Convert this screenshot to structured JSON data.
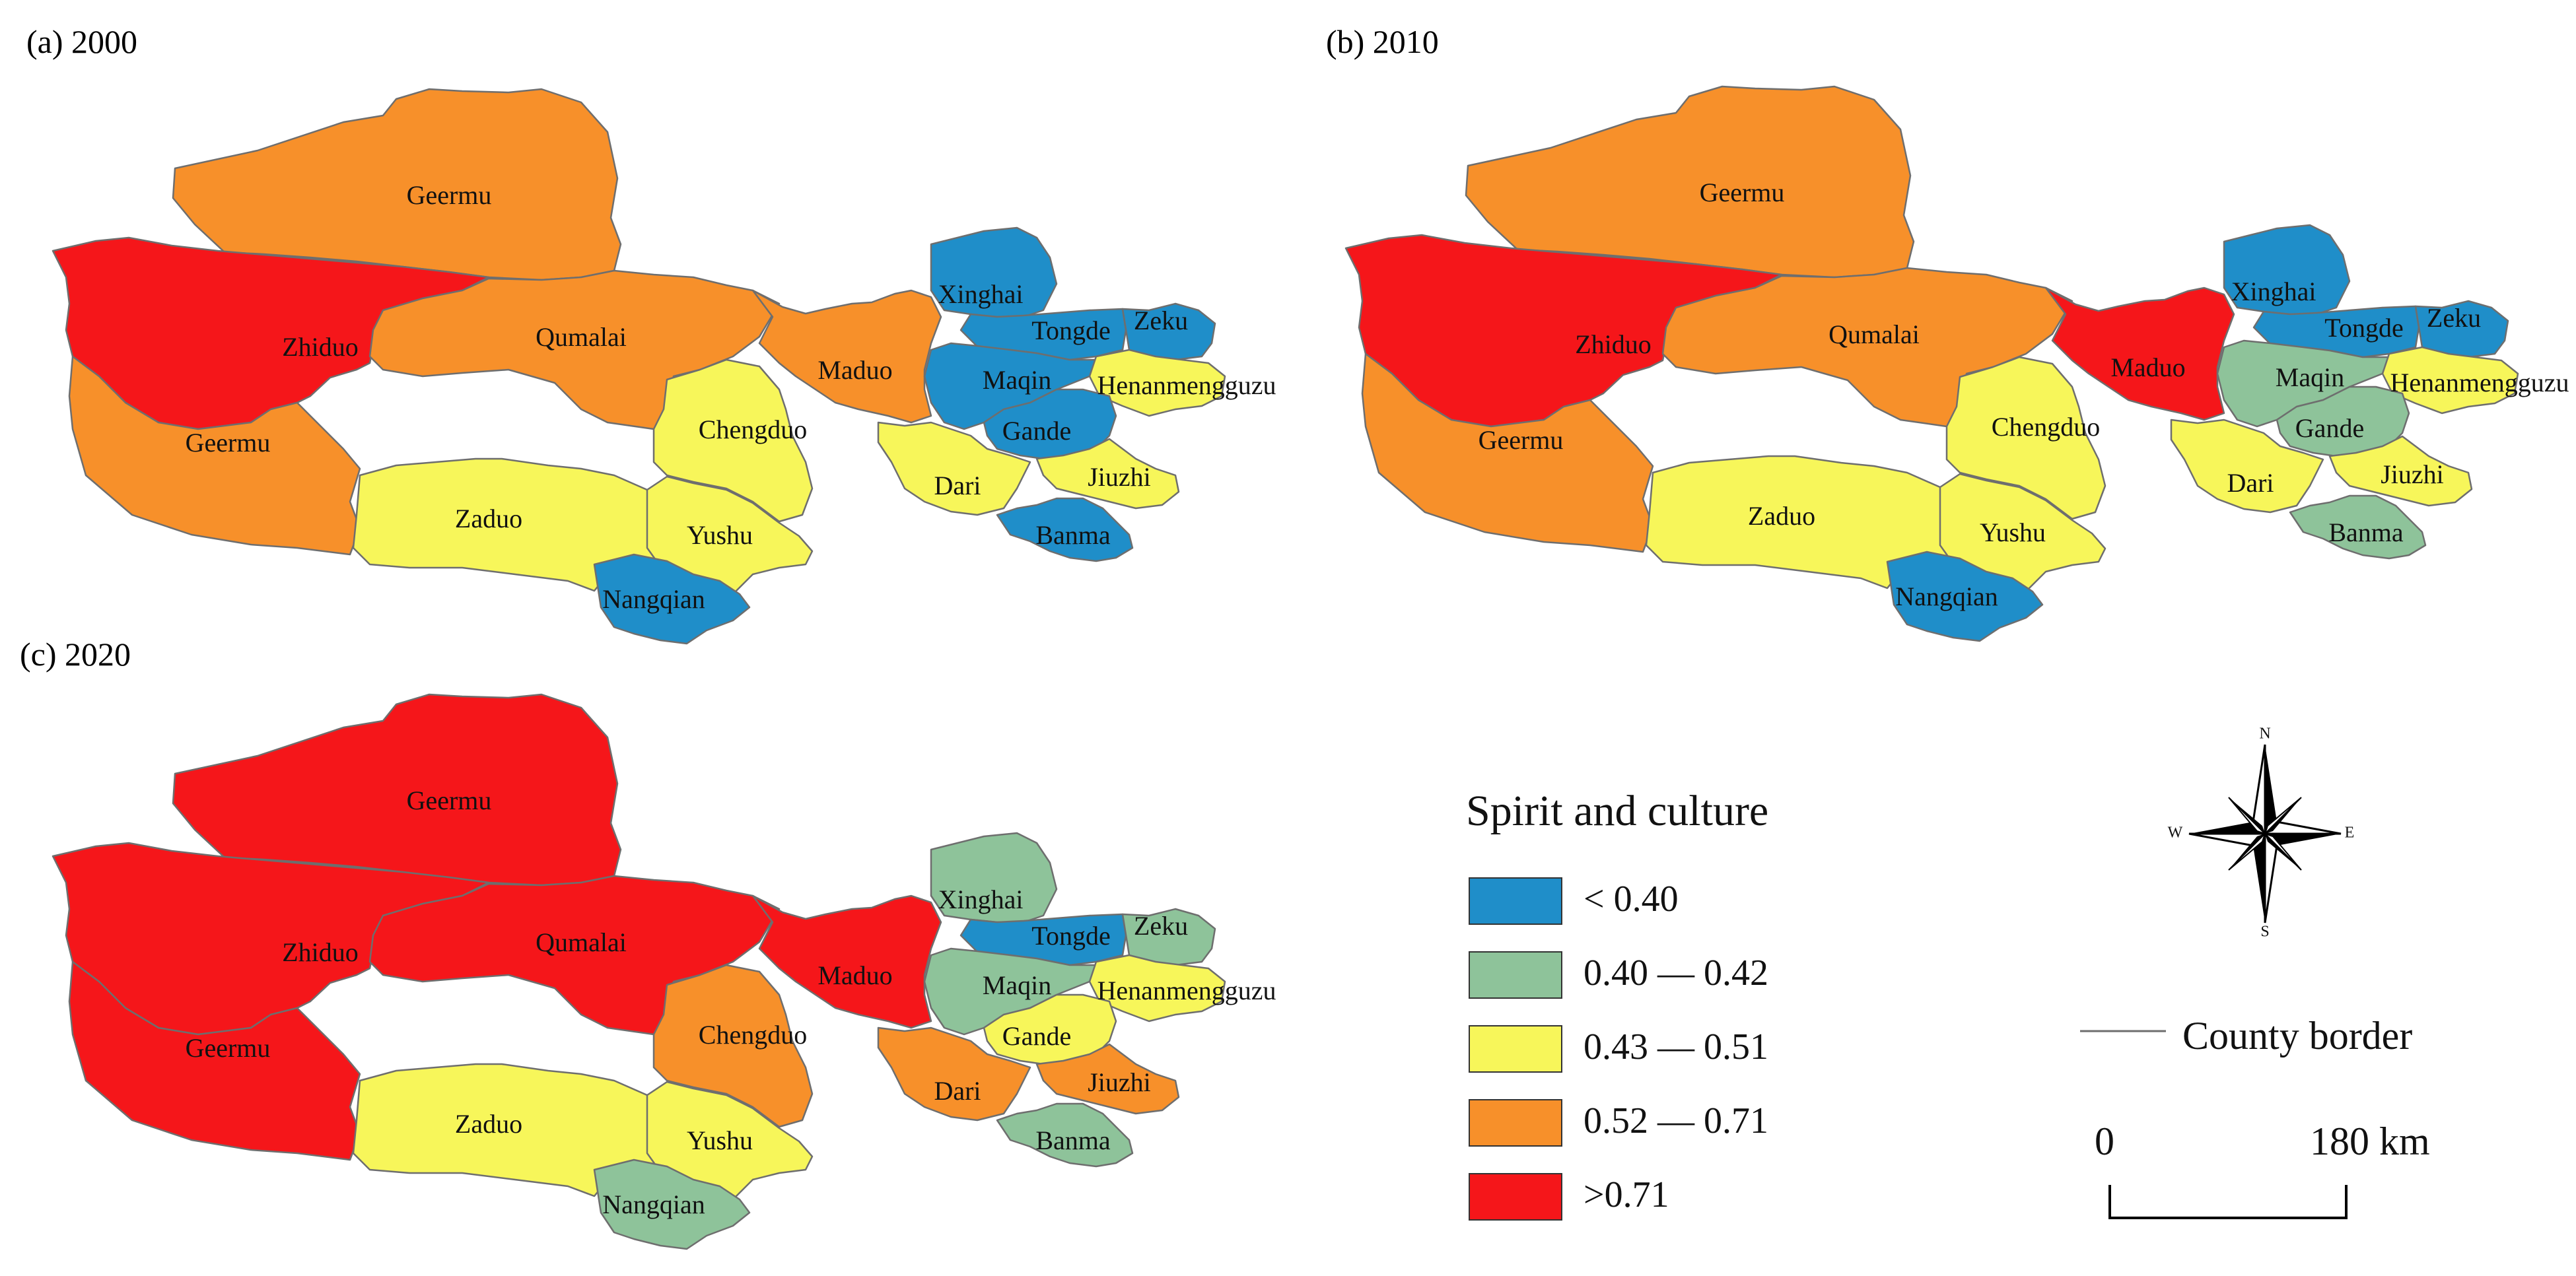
{
  "classes": [
    {
      "id": "c1",
      "label": "< 0.40",
      "color": "#1f8ec9"
    },
    {
      "id": "c2",
      "label": "0.40 — 0.42",
      "color": "#8ec39a"
    },
    {
      "id": "c3",
      "label": "0.43 — 0.51",
      "color": "#f7f65a"
    },
    {
      "id": "c4",
      "label": "0.52 — 0.71",
      "color": "#f7902a"
    },
    {
      "id": "c5",
      "label": ">0.71",
      "color": "#f5161a"
    }
  ],
  "legend": {
    "title": "Spirit and culture",
    "border_label": "County border",
    "scale_start": "0",
    "scale_end": "180 km"
  },
  "compass": {
    "n": "N",
    "s": "S",
    "e": "E",
    "w": "W"
  },
  "panels": [
    {
      "title": "(a) 2000",
      "classes": {
        "Geermu-N": "c4",
        "Zhiduo": "c5",
        "Geermu-S": "c4",
        "Qumalai": "c4",
        "Zaduo": "c3",
        "Chengduo": "c3",
        "Yushu": "c3",
        "Nangqian": "c1",
        "Maduo": "c4",
        "Xinghai": "c1",
        "Tongde": "c1",
        "Zeku": "c1",
        "Maqin": "c1",
        "Henanmengguzu": "c3",
        "Gande": "c1",
        "Dari": "c3",
        "Jiuzhi": "c3",
        "Banma": "c1"
      }
    },
    {
      "title": "(b) 2010",
      "classes": {
        "Geermu-N": "c4",
        "Zhiduo": "c5",
        "Geermu-S": "c4",
        "Qumalai": "c4",
        "Zaduo": "c3",
        "Chengduo": "c3",
        "Yushu": "c3",
        "Nangqian": "c1",
        "Maduo": "c5",
        "Xinghai": "c1",
        "Tongde": "c1",
        "Zeku": "c1",
        "Maqin": "c2",
        "Henanmengguzu": "c3",
        "Gande": "c2",
        "Dari": "c3",
        "Jiuzhi": "c3",
        "Banma": "c2"
      }
    },
    {
      "title": "(c) 2020",
      "classes": {
        "Geermu-N": "c5",
        "Zhiduo": "c5",
        "Geermu-S": "c5",
        "Qumalai": "c5",
        "Zaduo": "c3",
        "Chengduo": "c4",
        "Yushu": "c3",
        "Nangqian": "c2",
        "Maduo": "c5",
        "Xinghai": "c2",
        "Tongde": "c1",
        "Zeku": "c2",
        "Maqin": "c2",
        "Henanmengguzu": "c3",
        "Gande": "c3",
        "Dari": "c4",
        "Jiuzhi": "c4",
        "Banma": "c2"
      }
    }
  ],
  "counties": [
    {
      "id": "Geermu-N",
      "label": "Geermu"
    },
    {
      "id": "Zhiduo",
      "label": "Zhiduo"
    },
    {
      "id": "Geermu-S",
      "label": "Geermu"
    },
    {
      "id": "Qumalai",
      "label": "Qumalai"
    },
    {
      "id": "Zaduo",
      "label": "Zaduo"
    },
    {
      "id": "Chengduo",
      "label": "Chengduo"
    },
    {
      "id": "Yushu",
      "label": "Yushu"
    },
    {
      "id": "Nangqian",
      "label": "Nangqian"
    },
    {
      "id": "Maduo",
      "label": "Maduo"
    },
    {
      "id": "Xinghai",
      "label": "Xinghai"
    },
    {
      "id": "Tongde",
      "label": "Tongde"
    },
    {
      "id": "Zeku",
      "label": "Zeku"
    },
    {
      "id": "Maqin",
      "label": "Maqin"
    },
    {
      "id": "Henanmengguzu",
      "label": "Henanmengguzu"
    },
    {
      "id": "Gande",
      "label": "Gande"
    },
    {
      "id": "Dari",
      "label": "Dari"
    },
    {
      "id": "Jiuzhi",
      "label": "Jiuzhi"
    },
    {
      "id": "Banma",
      "label": "Banma"
    }
  ]
}
